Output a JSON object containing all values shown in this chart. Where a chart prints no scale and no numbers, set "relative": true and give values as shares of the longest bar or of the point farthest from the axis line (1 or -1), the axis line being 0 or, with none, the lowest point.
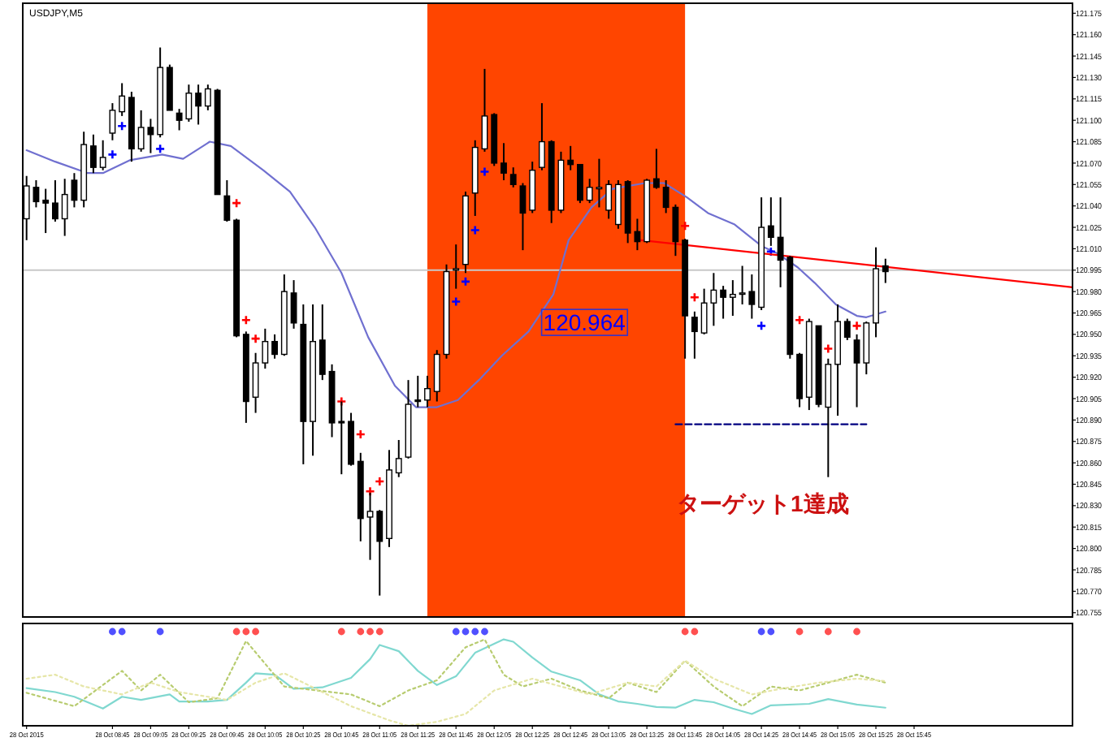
{
  "chart_data": [
    {
      "type": "candlestick",
      "title": "USDJPY,M5",
      "tick_labels": "y",
      "xlim": [
        "2015-10-28T07:58",
        "2015-10-28T17:08"
      ],
      "ylim": [
        120.752,
        121.182
      ],
      "yticks": [
        121.175,
        {
          "value": 121.16,
          "label": "121.160"
        },
        121.145,
        {
          "value": 121.13,
          "label": "121.130"
        },
        121.115,
        {
          "value": 121.1,
          "label": "121.100"
        },
        121.085,
        {
          "value": 121.07,
          "label": "121.070"
        },
        121.055,
        {
          "value": 121.04,
          "label": "121.040"
        },
        121.025,
        {
          "value": 121.01,
          "label": "121.010"
        },
        120.995,
        {
          "value": 120.98,
          "label": "120.980"
        },
        120.965,
        {
          "value": 120.95,
          "label": "120.950"
        },
        120.935,
        {
          "value": 120.92,
          "label": "120.920"
        },
        120.905,
        {
          "value": 120.89,
          "label": "120.890"
        },
        120.875,
        {
          "value": 120.86,
          "label": "120.860"
        },
        120.845,
        {
          "value": 120.83,
          "label": "120.830"
        },
        120.815,
        {
          "value": 120.8,
          "label": "120.800"
        },
        120.785,
        {
          "value": 120.77,
          "label": "120.770"
        },
        120.755
      ],
      "x": [
        "2015-10-28T08:00",
        "2015-10-28T08:05",
        "2015-10-28T08:10",
        "2015-10-28T08:15",
        "2015-10-28T08:20",
        "2015-10-28T08:25",
        "2015-10-28T08:30",
        "2015-10-28T08:35",
        "2015-10-28T08:40",
        "2015-10-28T08:45",
        "2015-10-28T08:50",
        "2015-10-28T08:55",
        "2015-10-28T09:00",
        "2015-10-28T09:05",
        "2015-10-28T09:10",
        "2015-10-28T09:15",
        "2015-10-28T09:20",
        "2015-10-28T09:25",
        "2015-10-28T09:30",
        "2015-10-28T09:35",
        "2015-10-28T09:40",
        "2015-10-28T09:45",
        "2015-10-28T09:50",
        "2015-10-28T09:55",
        "2015-10-28T10:00",
        "2015-10-28T10:05",
        "2015-10-28T10:10",
        "2015-10-28T10:15",
        "2015-10-28T10:20",
        "2015-10-28T10:25",
        "2015-10-28T10:30",
        "2015-10-28T10:35",
        "2015-10-28T10:40",
        "2015-10-28T10:45",
        "2015-10-28T10:50",
        "2015-10-28T10:55",
        "2015-10-28T11:00",
        "2015-10-28T11:05",
        "2015-10-28T11:10",
        "2015-10-28T11:15",
        "2015-10-28T11:20",
        "2015-10-28T11:25",
        "2015-10-28T11:30",
        "2015-10-28T11:35",
        "2015-10-28T11:40",
        "2015-10-28T11:45",
        "2015-10-28T11:50",
        "2015-10-28T11:55",
        "2015-10-28T12:00",
        "2015-10-28T12:05",
        "2015-10-28T12:10",
        "2015-10-28T12:15",
        "2015-10-28T12:20",
        "2015-10-28T12:25",
        "2015-10-28T12:30",
        "2015-10-28T12:35",
        "2015-10-28T12:40",
        "2015-10-28T12:45",
        "2015-10-28T12:50",
        "2015-10-28T12:55",
        "2015-10-28T13:00",
        "2015-10-28T13:05",
        "2015-10-28T13:10",
        "2015-10-28T13:15",
        "2015-10-28T13:20",
        "2015-10-28T13:25",
        "2015-10-28T13:30",
        "2015-10-28T13:35",
        "2015-10-28T13:40",
        "2015-10-28T13:45",
        "2015-10-28T13:50",
        "2015-10-28T13:55",
        "2015-10-28T14:00",
        "2015-10-28T14:05",
        "2015-10-28T14:10",
        "2015-10-28T14:15",
        "2015-10-28T14:20",
        "2015-10-28T14:25",
        "2015-10-28T14:30",
        "2015-10-28T14:35",
        "2015-10-28T14:40",
        "2015-10-28T14:45",
        "2015-10-28T14:50",
        "2015-10-28T14:55",
        "2015-10-28T15:00",
        "2015-10-28T15:05",
        "2015-10-28T15:10",
        "2015-10-28T15:15",
        "2015-10-28T15:20",
        "2015-10-28T15:25",
        "2015-10-28T15:30"
      ],
      "ohlc": [
        [
          121.031,
          121.061,
          121.016,
          121.054
        ],
        [
          121.053,
          121.058,
          121.039,
          121.043
        ],
        [
          121.044,
          121.052,
          121.021,
          121.042
        ],
        [
          121.042,
          121.058,
          121.029,
          121.031
        ],
        [
          121.031,
          121.059,
          121.019,
          121.048
        ],
        [
          121.058,
          121.063,
          121.039,
          121.044
        ],
        [
          121.044,
          121.092,
          121.039,
          121.083
        ],
        [
          121.082,
          121.09,
          121.063,
          121.067
        ],
        [
          121.067,
          121.086,
          121.065,
          121.074
        ],
        [
          121.091,
          121.112,
          121.086,
          121.107
        ],
        [
          121.106,
          121.126,
          121.103,
          121.117
        ],
        [
          121.116,
          121.12,
          121.071,
          121.08
        ],
        [
          121.08,
          121.107,
          121.078,
          121.095
        ],
        [
          121.095,
          121.101,
          121.077,
          121.09
        ],
        [
          121.09,
          121.151,
          121.088,
          121.137
        ],
        [
          121.137,
          121.139,
          121.107,
          121.107
        ],
        [
          121.105,
          121.108,
          121.093,
          121.1
        ],
        [
          121.101,
          121.125,
          121.099,
          121.119
        ],
        [
          121.119,
          121.125,
          121.097,
          121.11
        ],
        [
          121.11,
          121.125,
          121.107,
          121.122
        ],
        [
          121.121,
          121.122,
          121.048,
          121.048
        ],
        [
          121.047,
          121.058,
          121.029,
          121.03
        ],
        [
          121.03,
          121.031,
          120.948,
          120.949
        ],
        [
          120.95,
          120.952,
          120.888,
          120.903
        ],
        [
          120.906,
          120.937,
          120.895,
          120.93
        ],
        [
          120.93,
          120.954,
          120.926,
          120.945
        ],
        [
          120.945,
          120.95,
          120.933,
          120.936
        ],
        [
          120.936,
          120.992,
          120.935,
          120.98
        ],
        [
          120.979,
          120.988,
          120.954,
          120.958
        ],
        [
          120.957,
          120.971,
          120.859,
          120.889
        ],
        [
          120.889,
          120.971,
          120.865,
          120.945
        ],
        [
          120.946,
          120.971,
          120.918,
          120.922
        ],
        [
          120.924,
          120.929,
          120.878,
          120.888
        ],
        [
          120.889,
          120.903,
          120.852,
          120.888
        ],
        [
          120.889,
          120.895,
          120.858,
          120.859
        ],
        [
          120.861,
          120.867,
          120.805,
          120.821
        ],
        [
          120.822,
          120.839,
          120.792,
          120.826
        ],
        [
          120.826,
          120.827,
          120.767,
          120.805
        ],
        [
          120.807,
          120.869,
          120.801,
          120.855
        ],
        [
          120.853,
          120.876,
          120.85,
          120.863
        ],
        [
          120.864,
          120.918,
          120.863,
          120.901
        ],
        [
          120.904,
          120.921,
          120.899,
          120.903
        ],
        [
          120.904,
          120.921,
          120.899,
          120.912
        ],
        [
          120.91,
          120.939,
          120.903,
          120.936
        ],
        [
          120.936,
          120.999,
          120.933,
          120.994
        ],
        [
          120.995,
          121.013,
          120.982,
          120.996
        ],
        [
          120.999,
          121.05,
          120.993,
          121.047
        ],
        [
          121.049,
          121.086,
          121.033,
          121.081
        ],
        [
          121.08,
          121.136,
          121.078,
          121.103
        ],
        [
          121.104,
          121.105,
          121.068,
          121.07
        ],
        [
          121.07,
          121.084,
          121.058,
          121.063
        ],
        [
          121.062,
          121.067,
          121.053,
          121.055
        ],
        [
          121.054,
          121.056,
          121.009,
          121.035
        ],
        [
          121.037,
          121.071,
          121.035,
          121.065
        ],
        [
          121.067,
          121.112,
          121.065,
          121.085
        ],
        [
          121.085,
          121.086,
          121.028,
          121.037
        ],
        [
          121.037,
          121.078,
          121.035,
          121.072
        ],
        [
          121.072,
          121.082,
          121.065,
          121.069
        ],
        [
          121.069,
          121.069,
          121.042,
          121.044
        ],
        [
          121.044,
          121.059,
          121.042,
          121.053
        ],
        [
          121.052,
          121.073,
          121.039,
          121.053
        ],
        [
          121.037,
          121.058,
          121.031,
          121.055
        ],
        [
          121.027,
          121.058,
          121.024,
          121.055
        ],
        [
          121.057,
          121.058,
          121.014,
          121.021
        ],
        [
          121.022,
          121.031,
          121.009,
          121.015
        ],
        [
          121.015,
          121.059,
          121.014,
          121.058
        ],
        [
          121.059,
          121.08,
          121.052,
          121.053
        ],
        [
          121.053,
          121.058,
          121.035,
          121.039
        ],
        [
          121.039,
          121.041,
          121.005,
          121.015
        ],
        [
          121.016,
          121.017,
          120.933,
          120.963
        ],
        [
          120.962,
          120.966,
          120.933,
          120.952
        ],
        [
          120.951,
          120.982,
          120.95,
          120.972
        ],
        [
          120.972,
          120.993,
          120.956,
          120.981
        ],
        [
          120.981,
          120.984,
          120.961,
          120.976
        ],
        [
          120.976,
          120.988,
          120.963,
          120.978
        ],
        [
          120.979,
          120.998,
          120.971,
          120.979
        ],
        [
          120.98,
          120.992,
          120.961,
          120.971
        ],
        [
          120.969,
          121.046,
          120.967,
          121.025
        ],
        [
          121.026,
          121.046,
          121.012,
          121.018
        ],
        [
          121.018,
          121.046,
          120.983,
          121.002
        ],
        [
          121.004,
          121.005,
          120.933,
          120.936
        ],
        [
          120.936,
          120.937,
          120.899,
          120.905
        ],
        [
          120.906,
          120.961,
          120.897,
          120.959
        ],
        [
          120.956,
          120.956,
          120.899,
          120.901
        ],
        [
          120.899,
          120.933,
          120.85,
          120.929
        ],
        [
          120.929,
          120.971,
          120.893,
          120.959
        ],
        [
          120.959,
          120.961,
          120.946,
          120.948
        ],
        [
          120.946,
          120.95,
          120.899,
          120.93
        ],
        [
          120.93,
          120.959,
          120.922,
          120.958
        ],
        [
          120.958,
          121.011,
          120.948,
          120.996
        ],
        [
          120.998,
          121.003,
          120.986,
          120.994
        ]
      ],
      "bands": [
        {
          "axis": "x",
          "from": "2015-10-28T11:30",
          "to": "2015-10-28T13:45",
          "color": "#ff4500"
        }
      ],
      "ref_lines": [
        {
          "axis": "y",
          "value": 120.995,
          "color": "#c8c8c8"
        }
      ],
      "series": [
        {
          "type": "line",
          "color": "#7070d0",
          "x": [
            "2015-10-28T08:00",
            "2015-10-28T08:15",
            "2015-10-28T08:32",
            "2015-10-28T08:40",
            "2015-10-28T08:54",
            "2015-10-28T09:11",
            "2015-10-28T09:22",
            "2015-10-28T09:36",
            "2015-10-28T09:47",
            "2015-10-28T10:04",
            "2015-10-28T10:18",
            "2015-10-28T10:31",
            "2015-10-28T10:45",
            "2015-10-28T10:59",
            "2015-10-28T11:13",
            "2015-10-28T11:24",
            "2015-10-28T11:35",
            "2015-10-28T11:46",
            "2015-10-28T11:57",
            "2015-10-28T12:09",
            "2015-10-28T12:23",
            "2015-10-28T12:36",
            "2015-10-28T12:44",
            "2015-10-28T12:56",
            "2015-10-28T13:07",
            "2015-10-28T13:24",
            "2015-10-28T13:34",
            "2015-10-28T13:46",
            "2015-10-28T13:57",
            "2015-10-28T14:11",
            "2015-10-28T14:25",
            "2015-10-28T14:33",
            "2015-10-28T14:44",
            "2015-10-28T14:53",
            "2015-10-28T15:04",
            "2015-10-28T15:15",
            "2015-10-28T15:20",
            "2015-10-28T15:30"
          ],
          "values": [
            121.079,
            121.071,
            121.063,
            121.063,
            121.072,
            121.076,
            121.073,
            121.085,
            121.082,
            121.065,
            121.05,
            121.025,
            120.993,
            120.948,
            120.914,
            120.899,
            120.899,
            120.904,
            120.918,
            120.935,
            120.952,
            120.978,
            121.016,
            121.039,
            121.052,
            121.056,
            121.056,
            121.046,
            121.035,
            121.027,
            121.012,
            121.007,
            120.997,
            120.986,
            120.971,
            120.963,
            120.962,
            120.966
          ]
        },
        {
          "type": "scatter",
          "marker": "cross",
          "color": "#0000ff",
          "x": [
            "2015-10-28T08:45",
            "2015-10-28T08:50",
            "2015-10-28T09:10",
            "2015-10-28T11:45",
            "2015-10-28T11:50",
            "2015-10-28T11:55",
            "2015-10-28T12:00",
            "2015-10-28T14:25",
            "2015-10-28T14:30"
          ],
          "values": [
            121.076,
            121.096,
            121.08,
            120.973,
            120.987,
            121.023,
            121.064,
            120.956,
            121.008
          ]
        },
        {
          "type": "scatter",
          "marker": "cross",
          "color": "#ff0000",
          "x": [
            "2015-10-28T09:50",
            "2015-10-28T09:55",
            "2015-10-28T10:00",
            "2015-10-28T10:45",
            "2015-10-28T10:55",
            "2015-10-28T11:00",
            "2015-10-28T11:05",
            "2015-10-28T13:45",
            "2015-10-28T13:50",
            "2015-10-28T14:45",
            "2015-10-28T15:00",
            "2015-10-28T15:15"
          ],
          "values": [
            121.042,
            120.96,
            120.947,
            120.903,
            120.88,
            120.84,
            120.847,
            121.026,
            120.976,
            120.96,
            120.94,
            120.956
          ]
        },
        {
          "type": "line",
          "color": "#ff0000",
          "x": [
            "2015-10-28T13:22",
            "2015-10-28T17:08"
          ],
          "values": [
            121.016,
            120.983
          ]
        },
        {
          "type": "line",
          "line_style": "dashed",
          "color": "#000080",
          "x": [
            "2015-10-28T13:40",
            "2015-10-28T15:20"
          ],
          "values": [
            120.887,
            120.887
          ]
        }
      ],
      "annotations": [
        "120.964",
        "ターゲット1達成"
      ]
    },
    {
      "type": "line",
      "relative": true,
      "tick_labels": "x",
      "xlim": [
        "2015-10-28T07:58",
        "2015-10-28T17:08"
      ],
      "xticks": [
        {
          "value": "2015-10-28T08:00",
          "label": "28 Oct 2015"
        },
        {
          "value": "2015-10-28T08:45",
          "label": "28 Oct 08:45"
        },
        {
          "value": "2015-10-28T09:05",
          "label": "28 Oct 09:05"
        },
        {
          "value": "2015-10-28T09:25",
          "label": "28 Oct 09:25"
        },
        {
          "value": "2015-10-28T09:45",
          "label": "28 Oct 09:45"
        },
        {
          "value": "2015-10-28T10:05",
          "label": "28 Oct 10:05"
        },
        {
          "value": "2015-10-28T10:25",
          "label": "28 Oct 10:25"
        },
        {
          "value": "2015-10-28T10:45",
          "label": "28 Oct 10:45"
        },
        {
          "value": "2015-10-28T11:05",
          "label": "28 Oct 11:05"
        },
        {
          "value": "2015-10-28T11:25",
          "label": "28 Oct 11:25"
        },
        {
          "value": "2015-10-28T11:45",
          "label": "28 Oct 11:45"
        },
        {
          "value": "2015-10-28T12:05",
          "label": "28 Oct 12:05"
        },
        {
          "value": "2015-10-28T12:25",
          "label": "28 Oct 12:25"
        },
        {
          "value": "2015-10-28T12:45",
          "label": "28 Oct 12:45"
        },
        {
          "value": "2015-10-28T13:05",
          "label": "28 Oct 13:05"
        },
        {
          "value": "2015-10-28T13:25",
          "label": "28 Oct 13:25"
        },
        {
          "value": "2015-10-28T13:45",
          "label": "28 Oct 13:45"
        },
        {
          "value": "2015-10-28T14:05",
          "label": "28 Oct 14:05"
        },
        {
          "value": "2015-10-28T14:25",
          "label": "28 Oct 14:25"
        },
        {
          "value": "2015-10-28T14:45",
          "label": "28 Oct 14:45"
        },
        {
          "value": "2015-10-28T15:05",
          "label": "28 Oct 15:05"
        },
        {
          "value": "2015-10-28T15:25",
          "label": "28 Oct 15:25"
        },
        {
          "value": "2015-10-28T15:45",
          "label": "28 Oct 15:45"
        }
      ],
      "series": [
        {
          "type": "line",
          "color": "#80d8d0",
          "x": [
            "2015-10-28T08:00",
            "2015-10-28T08:15",
            "2015-10-28T08:25",
            "2015-10-28T08:40",
            "2015-10-28T08:50",
            "2015-10-28T09:00",
            "2015-10-28T09:15",
            "2015-10-28T09:20",
            "2015-10-28T09:35",
            "2015-10-28T09:45",
            "2015-10-28T09:55",
            "2015-10-28T10:00",
            "2015-10-28T10:10",
            "2015-10-28T10:20",
            "2015-10-28T10:35",
            "2015-10-28T10:50",
            "2015-10-28T11:00",
            "2015-10-28T11:05",
            "2015-10-28T11:15",
            "2015-10-28T11:25",
            "2015-10-28T11:35",
            "2015-10-28T11:45",
            "2015-10-28T11:55",
            "2015-10-28T12:10",
            "2015-10-28T12:15",
            "2015-10-28T12:25",
            "2015-10-28T12:35",
            "2015-10-28T12:50",
            "2015-10-28T13:00",
            "2015-10-28T13:10",
            "2015-10-28T13:20",
            "2015-10-28T13:30",
            "2015-10-28T13:40",
            "2015-10-28T13:50",
            "2015-10-28T14:00",
            "2015-10-28T14:10",
            "2015-10-28T14:20",
            "2015-10-28T14:30",
            "2015-10-28T14:50",
            "2015-10-28T15:00",
            "2015-10-28T15:15",
            "2015-10-28T15:30"
          ],
          "values": [
            0.4,
            0.358,
            0.308,
            0.183,
            0.308,
            0.275,
            0.333,
            0.258,
            0.258,
            0.275,
            0.458,
            0.558,
            0.542,
            0.392,
            0.408,
            0.508,
            0.708,
            0.858,
            0.792,
            0.583,
            0.433,
            0.525,
            0.775,
            0.917,
            0.892,
            0.725,
            0.575,
            0.483,
            0.333,
            0.258,
            0.233,
            0.2,
            0.192,
            0.275,
            0.25,
            0.183,
            0.125,
            0.217,
            0.233,
            0.283,
            0.225,
            0.192
          ]
        },
        {
          "type": "line",
          "line_style": "dotted",
          "color": "#b8cc70",
          "x": [
            "2015-10-28T08:00",
            "2015-10-28T08:25",
            "2015-10-28T08:50",
            "2015-10-28T09:00",
            "2015-10-28T09:10",
            "2015-10-28T09:25",
            "2015-10-28T09:40",
            "2015-10-28T09:55",
            "2015-10-28T10:15",
            "2015-10-28T10:25",
            "2015-10-28T10:50",
            "2015-10-28T11:05",
            "2015-10-28T11:20",
            "2015-10-28T11:35",
            "2015-10-28T11:50",
            "2015-10-28T12:00",
            "2015-10-28T12:10",
            "2015-10-28T12:20",
            "2015-10-28T12:35",
            "2015-10-28T12:50",
            "2015-10-28T13:05",
            "2015-10-28T13:15",
            "2015-10-28T13:30",
            "2015-10-28T13:45",
            "2015-10-28T14:00",
            "2015-10-28T14:15",
            "2015-10-28T14:30",
            "2015-10-28T14:45",
            "2015-10-28T15:00",
            "2015-10-28T15:15",
            "2015-10-28T15:30"
          ],
          "values": [
            0.35,
            0.208,
            0.583,
            0.375,
            0.542,
            0.25,
            0.292,
            0.9,
            0.417,
            0.392,
            0.333,
            0.208,
            0.375,
            0.483,
            0.833,
            0.917,
            0.542,
            0.417,
            0.5,
            0.375,
            0.292,
            0.458,
            0.358,
            0.692,
            0.417,
            0.208,
            0.417,
            0.375,
            0.458,
            0.542,
            0.458
          ]
        },
        {
          "type": "line",
          "line_style": "dotted",
          "color": "#e6e6a8",
          "x": [
            "2015-10-28T08:00",
            "2015-10-28T08:15",
            "2015-10-28T08:30",
            "2015-10-28T08:50",
            "2015-10-28T09:05",
            "2015-10-28T09:20",
            "2015-10-28T09:45",
            "2015-10-28T10:00",
            "2015-10-28T10:15",
            "2015-10-28T10:35",
            "2015-10-28T10:50",
            "2015-10-28T11:10",
            "2015-10-28T11:20",
            "2015-10-28T11:35",
            "2015-10-28T11:50",
            "2015-10-28T12:05",
            "2015-10-28T12:25",
            "2015-10-28T12:40",
            "2015-10-28T12:55",
            "2015-10-28T13:15",
            "2015-10-28T13:30",
            "2015-10-28T13:45",
            "2015-10-28T14:00",
            "2015-10-28T14:20",
            "2015-10-28T14:35",
            "2015-10-28T14:55",
            "2015-10-28T15:15",
            "2015-10-28T15:30"
          ],
          "values": [
            0.5,
            0.542,
            0.417,
            0.333,
            0.458,
            0.358,
            0.275,
            0.458,
            0.558,
            0.358,
            0.208,
            0.058,
            0,
            0.042,
            0.125,
            0.375,
            0.5,
            0.417,
            0.333,
            0.458,
            0.417,
            0.692,
            0.5,
            0.333,
            0.392,
            0.458,
            0.5,
            0.475
          ]
        },
        {
          "type": "scatter",
          "marker": "circle",
          "color": "#5050ff",
          "x": [
            "2015-10-28T08:45",
            "2015-10-28T08:50",
            "2015-10-28T09:10",
            "2015-10-28T11:45",
            "2015-10-28T11:50",
            "2015-10-28T11:55",
            "2015-10-28T12:00",
            "2015-10-28T14:25",
            "2015-10-28T14:30"
          ],
          "values": [
            1,
            1,
            1,
            1,
            1,
            1,
            1,
            1,
            1
          ]
        },
        {
          "type": "scatter",
          "marker": "circle",
          "color": "#ff5050",
          "x": [
            "2015-10-28T09:50",
            "2015-10-28T09:55",
            "2015-10-28T10:00",
            "2015-10-28T10:45",
            "2015-10-28T10:55",
            "2015-10-28T11:00",
            "2015-10-28T11:05",
            "2015-10-28T13:45",
            "2015-10-28T13:50",
            "2015-10-28T14:45",
            "2015-10-28T15:00",
            "2015-10-28T15:15"
          ],
          "values": [
            1,
            1,
            1,
            1,
            1,
            1,
            1,
            1,
            1,
            1,
            1,
            1
          ]
        }
      ]
    }
  ]
}
